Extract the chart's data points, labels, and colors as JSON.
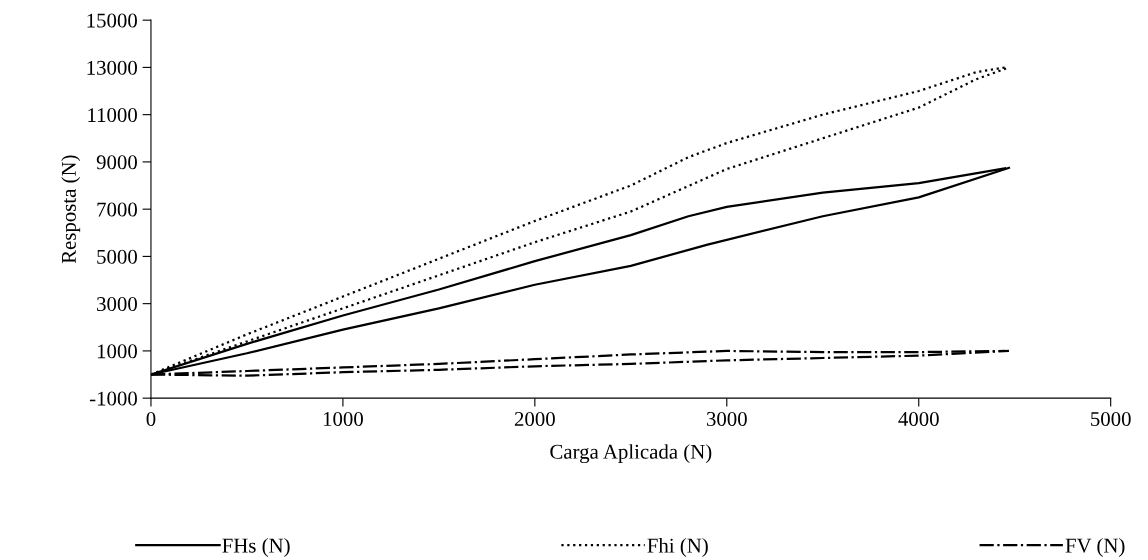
{
  "chart_data": {
    "type": "line",
    "xlabel": "Carga Aplicada (N)",
    "ylabel": "Resposta (N)",
    "xlim": [
      0,
      5000
    ],
    "xticks": [
      0,
      1000,
      2000,
      3000,
      4000,
      5000
    ],
    "ylim": [
      -1000,
      15000
    ],
    "yticks": [
      -1000,
      1000,
      3000,
      5000,
      7000,
      9000,
      11000,
      13000,
      15000
    ],
    "grid": false,
    "legend": "bottom",
    "marker": "none",
    "series": [
      {
        "name": "FHs (N)",
        "color": "#000000",
        "line_style": "solid",
        "x": [
          0,
          500,
          1000,
          1500,
          2000,
          2500,
          2900,
          3500,
          4000,
          4470
        ],
        "values": [
          0,
          900,
          1900,
          2800,
          3800,
          4600,
          5500,
          6700,
          7500,
          8750
        ]
      },
      {
        "color": "#000000",
        "line_style": "solid",
        "x": [
          0,
          500,
          1000,
          1500,
          2000,
          2500,
          2800,
          3000,
          3500,
          4000,
          4450
        ],
        "values": [
          0,
          1300,
          2500,
          3600,
          4800,
          5900,
          6700,
          7100,
          7700,
          8100,
          8730
        ]
      },
      {
        "name": "Fhi (N)",
        "color": "#000000",
        "line_style": "dotted",
        "x": [
          0,
          500,
          1000,
          1500,
          2000,
          2500,
          3000,
          3500,
          4000,
          4300,
          4470
        ],
        "values": [
          0,
          1400,
          2800,
          4200,
          5600,
          6900,
          8700,
          10000,
          11300,
          12500,
          13000
        ]
      },
      {
        "color": "#000000",
        "line_style": "dotted",
        "x": [
          0,
          500,
          1000,
          1500,
          2000,
          2500,
          2800,
          3000,
          3500,
          4000,
          4300,
          4450
        ],
        "values": [
          0,
          1700,
          3300,
          4900,
          6500,
          8000,
          9200,
          9800,
          11000,
          12000,
          12800,
          13000
        ]
      },
      {
        "name": "FV (N)",
        "color": "#000000",
        "line_style": "dashdot",
        "x": [
          0,
          500,
          1000,
          1500,
          2000,
          2500,
          3000,
          3500,
          4000,
          4470
        ],
        "values": [
          0,
          -50,
          100,
          200,
          350,
          450,
          600,
          700,
          800,
          1000
        ]
      },
      {
        "color": "#000000",
        "line_style": "dashdot",
        "x": [
          0,
          500,
          1000,
          1500,
          2000,
          2500,
          3000,
          3500,
          4000,
          4450
        ],
        "values": [
          0,
          150,
          300,
          450,
          650,
          850,
          1000,
          950,
          950,
          1000
        ]
      }
    ]
  }
}
